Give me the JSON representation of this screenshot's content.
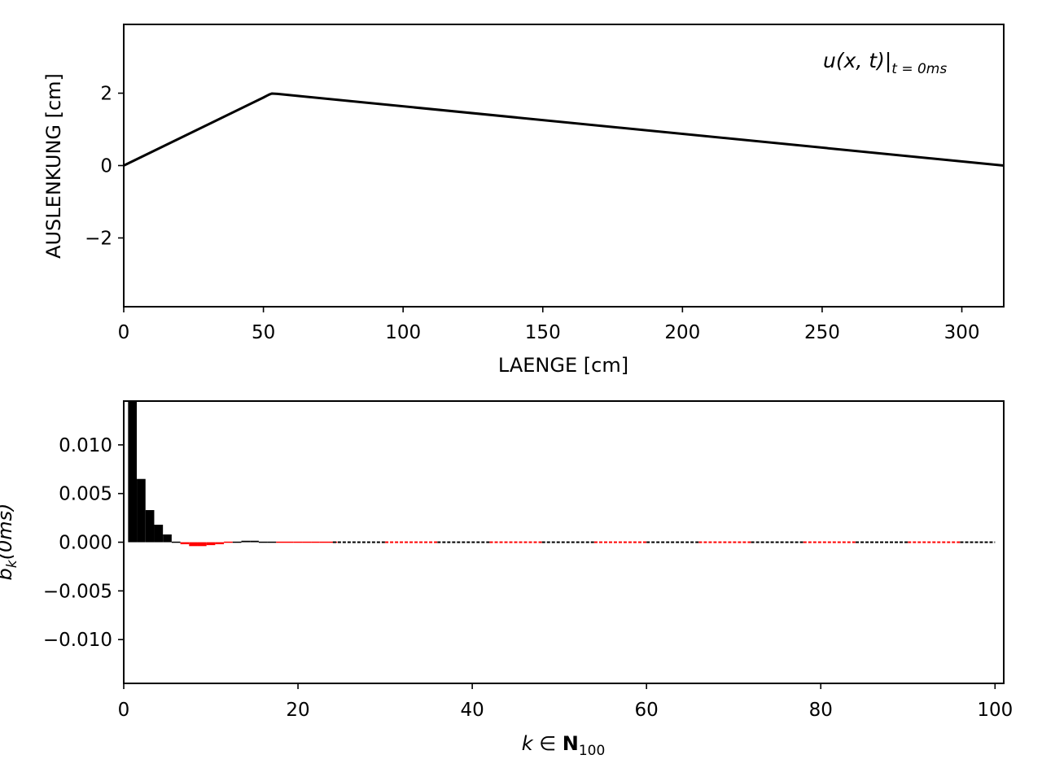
{
  "chart_data": [
    {
      "type": "line",
      "xlabel": "LAENGE [cm]",
      "ylabel": "AUSLENKUNG [cm]",
      "xlim": [
        0,
        315
      ],
      "ylim": [
        -3.9,
        3.9
      ],
      "xticks": [
        0,
        50,
        100,
        150,
        200,
        250,
        300
      ],
      "yticks": [
        -2,
        0,
        2
      ],
      "grid": false,
      "annotation": {
        "main": "u(x, t)|",
        "sub": "t = 0ms"
      },
      "series": [
        {
          "color": "#000000",
          "x": [
            0,
            50,
            51,
            52,
            53,
            55,
            315
          ],
          "y": [
            0,
            1.88,
            1.92,
            1.96,
            1.99,
            1.98,
            0
          ]
        }
      ]
    },
    {
      "type": "bar",
      "xlabel": "k ∈ ",
      "xlabel_sym": "N",
      "xlabel_sub": "100",
      "ylabel": "b",
      "ylabel_sub": "k",
      "ylabel_rest": "(0ms)",
      "xlim": [
        0,
        101
      ],
      "ylim": [
        -0.0145,
        0.0145
      ],
      "xticks": [
        0,
        20,
        40,
        60,
        80,
        100
      ],
      "yticks": [
        -0.01,
        -0.005,
        0.0,
        0.005,
        0.01
      ],
      "ytick_labels": [
        "−0.010",
        "−0.005",
        "0.000",
        "0.005",
        "0.010"
      ],
      "grid": false,
      "positive_color": "#000000",
      "negative_color": "#ff0000",
      "bars": [
        {
          "k": 1,
          "value": 0.0155
        },
        {
          "k": 2,
          "value": 0.0065
        },
        {
          "k": 3,
          "value": 0.0033
        },
        {
          "k": 4,
          "value": 0.0018
        },
        {
          "k": 5,
          "value": 0.0008
        },
        {
          "k": 6,
          "value": 5e-05
        },
        {
          "k": 7,
          "value": -0.0002
        },
        {
          "k": 8,
          "value": -0.0004
        },
        {
          "k": 9,
          "value": -0.0004
        },
        {
          "k": 10,
          "value": -0.0003
        },
        {
          "k": 11,
          "value": -0.0002
        },
        {
          "k": 12,
          "value": -5e-05
        },
        {
          "k": 13,
          "value": 0.0001
        },
        {
          "k": 14,
          "value": 0.00015
        },
        {
          "k": 15,
          "value": 0.00015
        },
        {
          "k": 16,
          "value": 0.0001
        },
        {
          "k": 17,
          "value": 3e-05
        },
        {
          "k": 18,
          "value": -5e-05
        },
        {
          "k": 19,
          "value": -0.0001
        },
        {
          "k": 20,
          "value": -0.00012
        },
        {
          "k": 21,
          "value": -0.00012
        },
        {
          "k": 22,
          "value": -0.0001
        },
        {
          "k": 23,
          "value": -5e-05
        },
        {
          "k": 24,
          "value": -2e-05
        }
      ],
      "baseline_segments": [
        {
          "from": 24,
          "to": 30,
          "color": "#000000"
        },
        {
          "from": 30,
          "to": 36,
          "color": "#ff0000"
        },
        {
          "from": 36,
          "to": 42,
          "color": "#000000"
        },
        {
          "from": 42,
          "to": 48,
          "color": "#ff0000"
        },
        {
          "from": 48,
          "to": 54,
          "color": "#000000"
        },
        {
          "from": 54,
          "to": 60,
          "color": "#ff0000"
        },
        {
          "from": 60,
          "to": 66,
          "color": "#000000"
        },
        {
          "from": 66,
          "to": 72,
          "color": "#ff0000"
        },
        {
          "from": 72,
          "to": 78,
          "color": "#000000"
        },
        {
          "from": 78,
          "to": 84,
          "color": "#ff0000"
        },
        {
          "from": 84,
          "to": 90,
          "color": "#000000"
        },
        {
          "from": 90,
          "to": 96,
          "color": "#ff0000"
        },
        {
          "from": 96,
          "to": 100,
          "color": "#000000"
        }
      ]
    }
  ]
}
